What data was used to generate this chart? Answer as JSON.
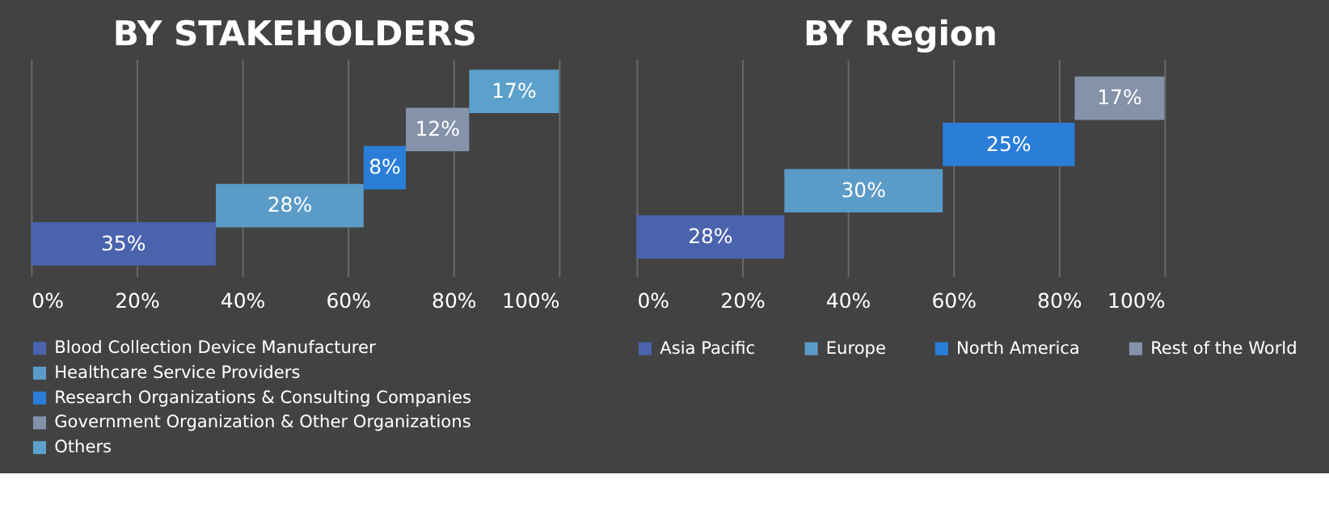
{
  "chart_data": [
    {
      "type": "bar",
      "orientation": "horizontal",
      "title": "BY STAKEHOLDERS",
      "categories": [
        null,
        null,
        null,
        null,
        null
      ],
      "series": [
        {
          "name": "Blood Collection Device Manufacturer",
          "color": "#4a63ad",
          "values": [
            null,
            null,
            null,
            null,
            35
          ],
          "base": [
            null,
            null,
            null,
            null,
            0
          ],
          "value_labels": [
            null,
            null,
            null,
            null,
            "35%"
          ]
        },
        {
          "name": "Healthcare Service Providers",
          "color": "#5b9bc8",
          "values": [
            null,
            null,
            null,
            28,
            null
          ],
          "base": [
            null,
            null,
            null,
            35,
            null
          ],
          "value_labels": [
            null,
            null,
            null,
            "28%",
            null
          ]
        },
        {
          "name": "Research Organizations & Consulting Companies",
          "color": "#2a7ed8",
          "values": [
            null,
            null,
            8,
            null,
            null
          ],
          "base": [
            null,
            null,
            63,
            null,
            null
          ],
          "value_labels": [
            null,
            null,
            "8%",
            null,
            null
          ]
        },
        {
          "name": "Government Organization & Other Organizations",
          "color": "#8492aa",
          "values": [
            null,
            12,
            null,
            null,
            null
          ],
          "base": [
            null,
            71,
            null,
            null,
            null
          ],
          "value_labels": [
            null,
            "12%",
            null,
            null,
            null
          ]
        },
        {
          "name": "Others",
          "color": "#5ca0cc",
          "values": [
            17,
            null,
            null,
            null,
            null
          ],
          "base": [
            83,
            null,
            null,
            null,
            null
          ],
          "value_labels": [
            "17%",
            null,
            null,
            null,
            null
          ]
        }
      ],
      "xlim": [
        0,
        100
      ],
      "xticks": [
        {
          "value": 0,
          "label": "0%"
        },
        {
          "value": 20,
          "label": "20%"
        },
        {
          "value": 40,
          "label": "40%"
        },
        {
          "value": 60,
          "label": "60%"
        },
        {
          "value": 80,
          "label": "80%"
        },
        {
          "value": 100,
          "label": "100%"
        }
      ],
      "grid": "x",
      "legend": "bottom",
      "tick_labels": "x"
    },
    {
      "type": "bar",
      "orientation": "horizontal",
      "title": "BY Region",
      "categories": [
        null,
        null,
        null,
        null
      ],
      "series": [
        {
          "name": "Asia Pacific",
          "color": "#4a63ad",
          "values": [
            null,
            null,
            null,
            28
          ],
          "base": [
            null,
            null,
            null,
            0
          ],
          "value_labels": [
            null,
            null,
            null,
            "28%"
          ]
        },
        {
          "name": "Europe",
          "color": "#5b9bc8",
          "values": [
            null,
            null,
            30,
            null
          ],
          "base": [
            null,
            null,
            28,
            null
          ],
          "value_labels": [
            null,
            null,
            "30%",
            null
          ]
        },
        {
          "name": "North America",
          "color": "#2a7ed8",
          "values": [
            null,
            25,
            null,
            null
          ],
          "base": [
            null,
            58,
            null,
            null
          ],
          "value_labels": [
            null,
            "25%",
            null,
            null
          ]
        },
        {
          "name": "Rest of the World",
          "color": "#8492aa",
          "values": [
            17,
            null,
            null,
            null
          ],
          "base": [
            83,
            null,
            null,
            null
          ],
          "value_labels": [
            "17%",
            null,
            null,
            null
          ]
        }
      ],
      "xlim": [
        0,
        100
      ],
      "xticks": [
        {
          "value": 0,
          "label": "0%"
        },
        {
          "value": 20,
          "label": "20%"
        },
        {
          "value": 40,
          "label": "40%"
        },
        {
          "value": 60,
          "label": "60%"
        },
        {
          "value": 80,
          "label": "80%"
        },
        {
          "value": 100,
          "label": "100%"
        }
      ],
      "grid": "x",
      "legend": "bottom",
      "tick_labels": "x"
    }
  ]
}
